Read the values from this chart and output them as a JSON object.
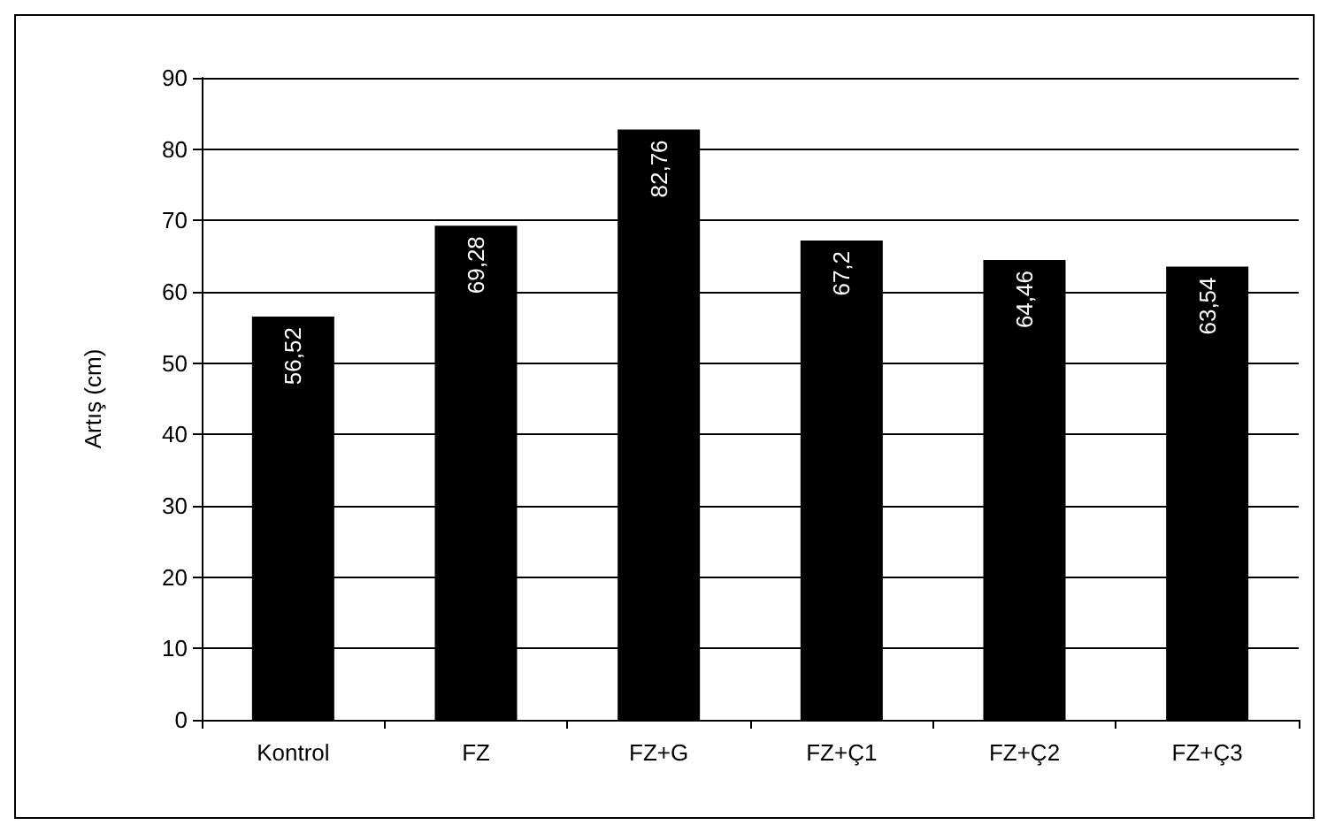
{
  "chart_data": {
    "type": "bar",
    "ylabel": "Artış (cm)",
    "categories": [
      "Kontrol",
      "FZ",
      "FZ+G",
      "FZ+Ç1",
      "FZ+Ç2",
      "FZ+Ç3"
    ],
    "values": [
      56.52,
      69.28,
      82.76,
      67.2,
      64.46,
      63.54
    ],
    "value_labels": [
      "56,52",
      "69,28",
      "82,76",
      "67,2",
      "64,46",
      "63,54"
    ],
    "color": "#000000",
    "ylim": [
      0,
      90
    ],
    "yticks": [
      0,
      10,
      20,
      30,
      40,
      50,
      60,
      70,
      80,
      90
    ],
    "grid": "y"
  }
}
